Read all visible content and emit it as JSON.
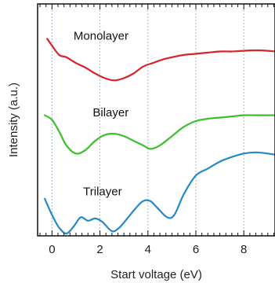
{
  "chart_data": {
    "type": "line",
    "title": "",
    "xlabel": "Start voltage (eV)",
    "ylabel": "Intensity (a.u.)",
    "xlim": [
      -0.6,
      9.3
    ],
    "ylim": [
      0,
      10
    ],
    "x_ticks": [
      "0",
      "2",
      "4",
      "6",
      "8"
    ],
    "x_tick_values": [
      0,
      2,
      4,
      6,
      8
    ],
    "grid": "vertical dotted at major x ticks",
    "legend": "none; series named by text labels beside the curves",
    "series": [
      {
        "name": "Monolayer",
        "color": "#d8232a",
        "label_x": 0.9,
        "label_y": 8.45,
        "x": [
          -0.2,
          0.0,
          0.3,
          0.6,
          1.0,
          1.4,
          1.8,
          2.2,
          2.6,
          3.0,
          3.4,
          3.8,
          4.2,
          4.6,
          5.0,
          5.5,
          6.0,
          6.5,
          7.0,
          7.5,
          8.0,
          8.5,
          9.0,
          9.3
        ],
        "y": [
          8.5,
          8.2,
          7.8,
          7.7,
          7.45,
          7.25,
          7.0,
          6.8,
          6.7,
          6.8,
          7.0,
          7.3,
          7.45,
          7.6,
          7.7,
          7.8,
          7.85,
          7.9,
          7.95,
          7.95,
          7.98,
          8.0,
          7.98,
          7.95
        ]
      },
      {
        "name": "Bilayer",
        "color": "#3cbf2c",
        "label_x": 1.7,
        "label_y": 5.15,
        "x": [
          -0.3,
          0.0,
          0.3,
          0.6,
          1.0,
          1.4,
          1.8,
          2.2,
          2.6,
          3.0,
          3.4,
          3.8,
          4.1,
          4.5,
          5.0,
          5.5,
          6.0,
          6.5,
          7.0,
          7.5,
          8.0,
          8.5,
          9.0,
          9.3
        ],
        "y": [
          5.2,
          5.0,
          4.5,
          3.9,
          3.55,
          3.7,
          4.1,
          4.35,
          4.4,
          4.3,
          4.1,
          3.9,
          3.75,
          3.9,
          4.3,
          4.7,
          4.95,
          5.05,
          5.1,
          5.15,
          5.2,
          5.2,
          5.2,
          5.2
        ]
      },
      {
        "name": "Trilayer",
        "color": "#2589c5",
        "label_x": 1.3,
        "label_y": 1.75,
        "x": [
          -0.3,
          0.0,
          0.3,
          0.6,
          0.9,
          1.2,
          1.5,
          1.8,
          2.1,
          2.5,
          2.8,
          3.1,
          3.5,
          3.8,
          4.1,
          4.4,
          4.8,
          5.1,
          5.5,
          6.0,
          6.5,
          7.0,
          7.5,
          8.0,
          8.5,
          9.0,
          9.3
        ],
        "y": [
          1.6,
          0.9,
          0.35,
          0.1,
          0.4,
          0.8,
          0.65,
          0.75,
          0.6,
          0.2,
          0.35,
          0.7,
          1.2,
          1.5,
          1.5,
          1.2,
          0.8,
          0.9,
          1.8,
          2.6,
          2.9,
          3.2,
          3.4,
          3.55,
          3.6,
          3.55,
          3.5
        ]
      }
    ]
  }
}
